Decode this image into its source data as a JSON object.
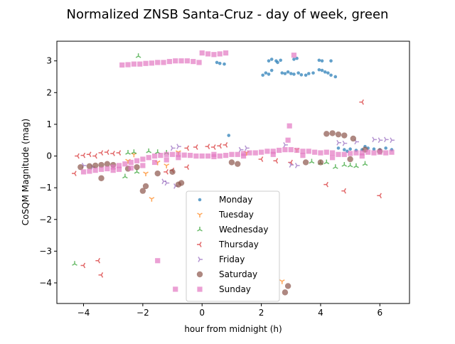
{
  "chart_data": {
    "type": "scatter",
    "title": "Normalized ZNSB Santa-Cruz - day of week, green",
    "xlabel": "hour from midnight (h)",
    "ylabel": "CoSQM Magnitude (mag)",
    "xlim": [
      -4.9,
      7.0
    ],
    "ylim": [
      -4.65,
      3.62
    ],
    "xticks": [
      -4,
      -2,
      0,
      2,
      4,
      6
    ],
    "yticks": [
      -4,
      -3,
      -2,
      -1,
      0,
      1,
      2,
      3
    ],
    "grid": false,
    "legend_position": "lower-center",
    "series": [
      {
        "name": "Monday",
        "marker": "circle",
        "color": "#1f77b4",
        "points": [
          [
            2.05,
            2.55
          ],
          [
            2.15,
            2.62
          ],
          [
            2.25,
            2.58
          ],
          [
            2.35,
            2.7
          ],
          [
            2.55,
            2.95
          ],
          [
            2.7,
            2.62
          ],
          [
            2.8,
            2.6
          ],
          [
            2.9,
            2.65
          ],
          [
            3.0,
            2.6
          ],
          [
            3.1,
            2.58
          ],
          [
            3.25,
            2.62
          ],
          [
            3.35,
            2.56
          ],
          [
            3.5,
            2.55
          ],
          [
            3.6,
            2.6
          ],
          [
            3.75,
            2.62
          ],
          [
            3.95,
            2.72
          ],
          [
            4.05,
            2.7
          ],
          [
            4.15,
            2.65
          ],
          [
            4.25,
            2.62
          ],
          [
            4.35,
            2.55
          ],
          [
            4.5,
            2.5
          ],
          [
            2.25,
            3.0
          ],
          [
            2.35,
            3.05
          ],
          [
            2.5,
            3.0
          ],
          [
            2.65,
            3.02
          ],
          [
            3.1,
            3.05
          ],
          [
            3.2,
            3.08
          ],
          [
            3.95,
            3.02
          ],
          [
            4.05,
            3.0
          ],
          [
            4.35,
            3.0
          ],
          [
            0.5,
            2.95
          ],
          [
            0.6,
            2.92
          ],
          [
            0.75,
            2.9
          ],
          [
            0.9,
            0.65
          ],
          [
            4.6,
            0.25
          ],
          [
            4.8,
            0.2
          ],
          [
            5.0,
            0.22
          ],
          [
            5.2,
            0.18
          ],
          [
            5.4,
            0.2
          ],
          [
            5.6,
            0.25
          ],
          [
            5.8,
            0.22
          ],
          [
            6.0,
            0.2
          ],
          [
            6.2,
            0.25
          ],
          [
            6.4,
            0.2
          ],
          [
            5.5,
            0.3
          ],
          [
            4.9,
            0.15
          ]
        ]
      },
      {
        "name": "Tuesday",
        "marker": "tri_down",
        "color": "#ff7f0e",
        "points": [
          [
            -1.7,
            -1.35
          ],
          [
            -1.9,
            -0.55
          ],
          [
            -1.5,
            -0.2
          ],
          [
            -1.2,
            -0.3
          ],
          [
            -2.3,
            0.05
          ],
          [
            2.7,
            -3.95
          ],
          [
            -2.5,
            -0.15
          ],
          [
            3.2,
            0.2
          ],
          [
            1.5,
            0.1
          ],
          [
            -0.8,
            0.12
          ]
        ]
      },
      {
        "name": "Wednesday",
        "marker": "tri_up",
        "color": "#2ca02c",
        "points": [
          [
            -2.15,
            3.15
          ],
          [
            -4.3,
            -3.4
          ],
          [
            -2.6,
            -0.65
          ],
          [
            -2.2,
            -0.5
          ],
          [
            -1.8,
            0.15
          ],
          [
            -1.5,
            0.12
          ],
          [
            -1.2,
            0.1
          ],
          [
            4.5,
            -0.35
          ],
          [
            4.8,
            -0.28
          ],
          [
            5.0,
            -0.3
          ],
          [
            5.2,
            -0.32
          ],
          [
            5.5,
            -0.25
          ],
          [
            -2.5,
            0.1
          ],
          [
            -2.3,
            0.12
          ],
          [
            4.2,
            -0.2
          ],
          [
            4.0,
            -0.22
          ],
          [
            3.7,
            -0.18
          ]
        ]
      },
      {
        "name": "Thursday",
        "marker": "tri_left",
        "color": "#d62728",
        "points": [
          [
            5.4,
            1.7
          ],
          [
            -4.3,
            -0.55
          ],
          [
            -4.2,
            0.0
          ],
          [
            -4.0,
            0.02
          ],
          [
            -3.8,
            0.05
          ],
          [
            -3.6,
            0.0
          ],
          [
            -3.4,
            0.1
          ],
          [
            -3.2,
            0.12
          ],
          [
            -3.0,
            0.08
          ],
          [
            -2.8,
            0.1
          ],
          [
            -4.0,
            -3.45
          ],
          [
            -3.5,
            -3.3
          ],
          [
            -3.4,
            -3.75
          ],
          [
            6.0,
            -1.25
          ],
          [
            4.8,
            -1.1
          ],
          [
            4.2,
            -0.9
          ],
          [
            0.2,
            0.3
          ],
          [
            0.4,
            0.28
          ],
          [
            0.6,
            0.32
          ],
          [
            0.8,
            0.35
          ],
          [
            -0.5,
            0.25
          ],
          [
            -0.2,
            0.28
          ],
          [
            -1.2,
            -0.5
          ],
          [
            -1.0,
            -0.45
          ],
          [
            -0.5,
            -0.35
          ],
          [
            2.0,
            -0.1
          ],
          [
            2.5,
            -0.15
          ],
          [
            3.0,
            -0.2
          ]
        ]
      },
      {
        "name": "Friday",
        "marker": "tri_right",
        "color": "#9467bd",
        "points": [
          [
            -4.0,
            -0.3
          ],
          [
            -3.7,
            -0.35
          ],
          [
            -1.3,
            -0.8
          ],
          [
            -1.2,
            -0.85
          ],
          [
            -0.9,
            -0.95
          ],
          [
            5.8,
            0.52
          ],
          [
            6.0,
            0.5
          ],
          [
            6.2,
            0.52
          ],
          [
            6.4,
            0.5
          ],
          [
            4.6,
            0.42
          ],
          [
            4.8,
            0.4
          ],
          [
            5.2,
            0.45
          ],
          [
            3.2,
            -0.3
          ],
          [
            3.0,
            -0.28
          ],
          [
            -0.8,
            0.3
          ],
          [
            -1.0,
            0.25
          ],
          [
            1.3,
            0.2
          ],
          [
            1.5,
            0.25
          ],
          [
            2.8,
            0.35
          ]
        ]
      },
      {
        "name": "Saturday",
        "marker": "circle-large",
        "color": "#8c564b",
        "points": [
          [
            -4.1,
            -0.35
          ],
          [
            -3.8,
            -0.32
          ],
          [
            -3.6,
            -0.3
          ],
          [
            -3.4,
            -0.28
          ],
          [
            -3.2,
            -0.25
          ],
          [
            -3.0,
            -0.28
          ],
          [
            -3.4,
            -0.7
          ],
          [
            -2.0,
            -1.1
          ],
          [
            -1.9,
            -0.95
          ],
          [
            -0.8,
            -0.9
          ],
          [
            -0.7,
            -0.85
          ],
          [
            2.8,
            -4.3
          ],
          [
            2.9,
            -4.1
          ],
          [
            4.2,
            0.7
          ],
          [
            4.4,
            0.72
          ],
          [
            4.6,
            0.68
          ],
          [
            4.8,
            0.65
          ],
          [
            5.1,
            0.55
          ],
          [
            4.0,
            -0.2
          ],
          [
            3.5,
            -0.2
          ],
          [
            5.0,
            -0.1
          ],
          [
            -2.5,
            -0.4
          ],
          [
            -2.2,
            -0.35
          ],
          [
            -1.0,
            -0.5
          ],
          [
            -1.5,
            -0.55
          ],
          [
            1.0,
            -0.2
          ],
          [
            1.2,
            -0.25
          ],
          [
            5.5,
            0.2
          ],
          [
            6.0,
            0.15
          ]
        ]
      },
      {
        "name": "Sunday",
        "marker": "square",
        "color": "#e377c2",
        "points": [
          [
            -2.7,
            2.87
          ],
          [
            -2.5,
            2.88
          ],
          [
            -2.3,
            2.9
          ],
          [
            -2.1,
            2.9
          ],
          [
            -1.9,
            2.92
          ],
          [
            -1.7,
            2.93
          ],
          [
            -1.5,
            2.95
          ],
          [
            -1.3,
            2.95
          ],
          [
            -1.1,
            2.98
          ],
          [
            -0.9,
            3.0
          ],
          [
            -0.7,
            3.0
          ],
          [
            -0.5,
            3.0
          ],
          [
            -0.3,
            2.98
          ],
          [
            -0.1,
            2.95
          ],
          [
            0.0,
            3.25
          ],
          [
            0.2,
            3.22
          ],
          [
            0.4,
            3.2
          ],
          [
            0.6,
            3.22
          ],
          [
            0.8,
            3.25
          ],
          [
            3.1,
            3.18
          ],
          [
            2.95,
            0.95
          ],
          [
            2.9,
            0.5
          ],
          [
            -1.5,
            -3.3
          ],
          [
            -0.9,
            -4.2
          ],
          [
            -4.0,
            -0.5
          ],
          [
            -3.8,
            -0.48
          ],
          [
            -3.6,
            -0.45
          ],
          [
            -3.4,
            -0.42
          ],
          [
            -3.2,
            -0.4
          ],
          [
            -3.0,
            -0.35
          ],
          [
            -2.8,
            -0.3
          ],
          [
            -2.6,
            -0.25
          ],
          [
            -2.4,
            -0.2
          ],
          [
            -2.2,
            -0.15
          ],
          [
            -2.0,
            -0.1
          ],
          [
            -1.8,
            -0.05
          ],
          [
            -1.6,
            0.0
          ],
          [
            -1.4,
            0.02
          ],
          [
            -1.2,
            0.05
          ],
          [
            -1.0,
            0.05
          ],
          [
            -0.8,
            0.05
          ],
          [
            -0.6,
            0.03
          ],
          [
            -0.4,
            0.02
          ],
          [
            -0.2,
            0.0
          ],
          [
            0.0,
            0.0
          ],
          [
            0.2,
            0.0
          ],
          [
            0.4,
            -0.02
          ],
          [
            0.6,
            0.0
          ],
          [
            0.8,
            0.02
          ],
          [
            1.0,
            0.05
          ],
          [
            1.2,
            0.05
          ],
          [
            1.4,
            0.08
          ],
          [
            1.6,
            0.1
          ],
          [
            1.8,
            0.1
          ],
          [
            2.0,
            0.12
          ],
          [
            2.2,
            0.15
          ],
          [
            2.4,
            0.15
          ],
          [
            2.6,
            0.18
          ],
          [
            2.8,
            0.2
          ],
          [
            3.0,
            0.2
          ],
          [
            3.2,
            0.18
          ],
          [
            3.4,
            0.15
          ],
          [
            3.6,
            0.15
          ],
          [
            3.8,
            0.12
          ],
          [
            4.0,
            0.1
          ],
          [
            4.2,
            0.12
          ],
          [
            4.4,
            0.1
          ],
          [
            4.6,
            0.05
          ],
          [
            4.8,
            0.05
          ],
          [
            5.0,
            0.08
          ],
          [
            5.2,
            0.1
          ],
          [
            5.4,
            0.1
          ],
          [
            5.6,
            0.12
          ],
          [
            5.8,
            0.1
          ],
          [
            6.0,
            0.12
          ],
          [
            6.2,
            0.1
          ],
          [
            6.4,
            0.12
          ],
          [
            -3.0,
            -0.45
          ],
          [
            -2.8,
            -0.42
          ],
          [
            -2.4,
            -0.38
          ],
          [
            -2.0,
            -0.3
          ],
          [
            -1.6,
            -0.2
          ],
          [
            -1.2,
            -0.12
          ],
          [
            -0.8,
            -0.05
          ],
          [
            0.4,
            0.05
          ],
          [
            1.4,
            0.0
          ],
          [
            2.4,
            0.05
          ],
          [
            3.4,
            0.02
          ],
          [
            4.4,
            -0.05
          ],
          [
            5.4,
            0.0
          ]
        ]
      }
    ]
  }
}
